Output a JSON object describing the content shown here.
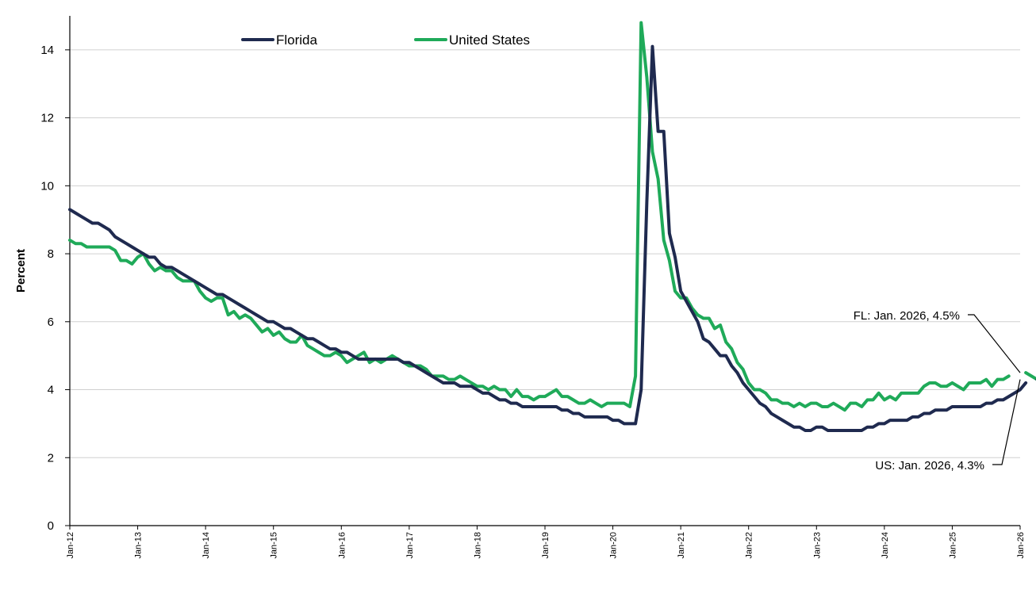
{
  "chart_data": {
    "type": "line",
    "title": "",
    "xlabel": "",
    "ylabel": "Percent",
    "ylim": [
      0,
      15
    ],
    "yticks": [
      0,
      2,
      4,
      6,
      8,
      10,
      12,
      14
    ],
    "xticks": [
      "Jan-12",
      "Jan-13",
      "Jan-14",
      "Jan-15",
      "Jan-16",
      "Jan-17",
      "Jan-18",
      "Jan-19",
      "Jan-20",
      "Jan-21",
      "Jan-22",
      "Jan-23",
      "Jan-24",
      "Jan-25",
      "Jan-26"
    ],
    "grid": true,
    "legend_position": "top",
    "colors": {
      "Florida": "#1f2a4f",
      "United States": "#1faa59"
    },
    "x_start": "2012-01",
    "series": [
      {
        "name": "Florida",
        "values": [
          9.3,
          9.2,
          9.1,
          9.0,
          8.9,
          8.9,
          8.8,
          8.7,
          8.5,
          8.4,
          8.3,
          8.2,
          8.1,
          8.0,
          7.9,
          7.9,
          7.7,
          7.6,
          7.6,
          7.5,
          7.4,
          7.3,
          7.2,
          7.1,
          7.0,
          6.9,
          6.8,
          6.8,
          6.7,
          6.6,
          6.5,
          6.4,
          6.3,
          6.2,
          6.1,
          6.0,
          6.0,
          5.9,
          5.8,
          5.8,
          5.7,
          5.6,
          5.5,
          5.5,
          5.4,
          5.3,
          5.2,
          5.2,
          5.1,
          5.1,
          5.0,
          4.9,
          4.9,
          4.9,
          4.9,
          4.9,
          4.9,
          4.9,
          4.9,
          4.8,
          4.8,
          4.7,
          4.6,
          4.5,
          4.4,
          4.3,
          4.2,
          4.2,
          4.2,
          4.1,
          4.1,
          4.1,
          4.0,
          3.9,
          3.9,
          3.8,
          3.7,
          3.7,
          3.6,
          3.6,
          3.5,
          3.5,
          3.5,
          3.5,
          3.5,
          3.5,
          3.5,
          3.4,
          3.4,
          3.3,
          3.3,
          3.2,
          3.2,
          3.2,
          3.2,
          3.2,
          3.1,
          3.1,
          3.0,
          3.0,
          3.0,
          4.0,
          9.5,
          14.1,
          11.6,
          11.6,
          8.6,
          7.9,
          6.9,
          6.6,
          6.3,
          6.0,
          5.5,
          5.4,
          5.2,
          5.0,
          5.0,
          4.7,
          4.5,
          4.2,
          4.0,
          3.8,
          3.6,
          3.5,
          3.3,
          3.2,
          3.1,
          3.0,
          2.9,
          2.9,
          2.8,
          2.8,
          2.9,
          2.9,
          2.8,
          2.8,
          2.8,
          2.8,
          2.8,
          2.8,
          2.8,
          2.9,
          2.9,
          3.0,
          3.0,
          3.1,
          3.1,
          3.1,
          3.1,
          3.2,
          3.2,
          3.3,
          3.3,
          3.4,
          3.4,
          3.4,
          3.5,
          3.5,
          3.5,
          3.5,
          3.5,
          3.5,
          3.6,
          3.6,
          3.7,
          3.7,
          3.8,
          3.9,
          4.0,
          4.2,
          null,
          4.3,
          4.3,
          4.3,
          4.5
        ]
      },
      {
        "name": "United States",
        "values": [
          8.4,
          8.3,
          8.3,
          8.2,
          8.2,
          8.2,
          8.2,
          8.2,
          8.1,
          7.8,
          7.8,
          7.7,
          7.9,
          8.0,
          7.7,
          7.5,
          7.6,
          7.5,
          7.5,
          7.3,
          7.2,
          7.2,
          7.2,
          6.9,
          6.7,
          6.6,
          6.7,
          6.7,
          6.2,
          6.3,
          6.1,
          6.2,
          6.1,
          5.9,
          5.7,
          5.8,
          5.6,
          5.7,
          5.5,
          5.4,
          5.4,
          5.6,
          5.3,
          5.2,
          5.1,
          5.0,
          5.0,
          5.1,
          5.0,
          4.8,
          4.9,
          5.0,
          5.1,
          4.8,
          4.9,
          4.8,
          4.9,
          5.0,
          4.9,
          4.8,
          4.7,
          4.7,
          4.7,
          4.6,
          4.4,
          4.4,
          4.4,
          4.3,
          4.3,
          4.4,
          4.3,
          4.2,
          4.1,
          4.1,
          4.0,
          4.1,
          4.0,
          4.0,
          3.8,
          4.0,
          3.8,
          3.8,
          3.7,
          3.8,
          3.8,
          3.9,
          4.0,
          3.8,
          3.8,
          3.7,
          3.6,
          3.6,
          3.7,
          3.6,
          3.5,
          3.6,
          3.6,
          3.6,
          3.6,
          3.5,
          4.4,
          14.8,
          13.2,
          11.0,
          10.2,
          8.4,
          7.8,
          6.9,
          6.7,
          6.7,
          6.4,
          6.2,
          6.1,
          6.1,
          5.8,
          5.9,
          5.4,
          5.2,
          4.8,
          4.6,
          4.2,
          4.0,
          4.0,
          3.9,
          3.7,
          3.7,
          3.6,
          3.6,
          3.5,
          3.6,
          3.5,
          3.6,
          3.6,
          3.5,
          3.5,
          3.6,
          3.5,
          3.4,
          3.6,
          3.6,
          3.5,
          3.7,
          3.7,
          3.9,
          3.7,
          3.8,
          3.7,
          3.9,
          3.9,
          3.9,
          3.9,
          4.1,
          4.2,
          4.2,
          4.1,
          4.1,
          4.2,
          4.1,
          4.0,
          4.2,
          4.2,
          4.2,
          4.3,
          4.1,
          4.3,
          4.3,
          4.4,
          null,
          null,
          4.5,
          4.4,
          4.3
        ]
      }
    ],
    "annotations": [
      {
        "text": "FL: Jan. 2026, 4.5%",
        "series": "Florida",
        "x": "2026-01",
        "y": 4.5
      },
      {
        "text": "US: Jan. 2026, 4.3%",
        "series": "United States",
        "x": "2026-01",
        "y": 4.3
      }
    ]
  }
}
